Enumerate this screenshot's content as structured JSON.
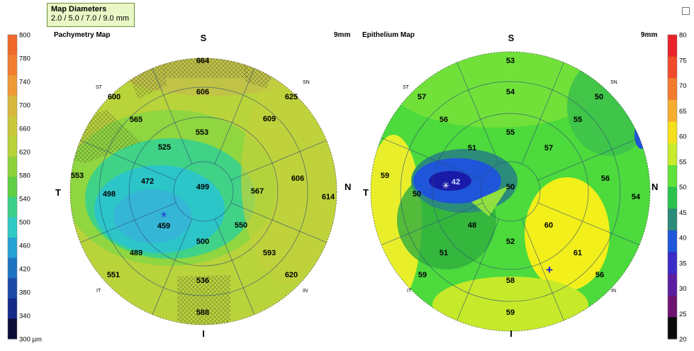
{
  "map_diameters": {
    "title": "Map Diameters",
    "values": "2.0 / 5.0 / 7.0 / 9.0 mm"
  },
  "pachymetry": {
    "title": "Pachymetry Map",
    "size_label": "9mm",
    "orientation": {
      "S": "S",
      "I": "I",
      "T": "T",
      "N": "N",
      "ST": "ST",
      "SN": "SN",
      "IT": "IT",
      "IN": "IN"
    },
    "scale_ticks": [
      "800",
      "780",
      "740",
      "700",
      "660",
      "620",
      "580",
      "540",
      "500",
      "460",
      "420",
      "380",
      "340",
      "300 µm"
    ],
    "scale_colors": [
      "#f06a2a",
      "#f27f2f",
      "#ef9a36",
      "#d9b63c",
      "#c8c83a",
      "#b8d238",
      "#8ed23a",
      "#5fd043",
      "#3cd08a",
      "#30c9c4",
      "#25a2d6",
      "#1f74c2",
      "#1b4aa7",
      "#132a88",
      "#0b0b3a"
    ],
    "zones": {
      "center": "499",
      "ring1": [
        "553",
        "567",
        "550",
        "500",
        "472",
        "525"
      ],
      "ring2": [
        "606",
        "609",
        "606",
        "593",
        "536",
        "489",
        "498",
        "565"
      ],
      "ring3": [
        "664",
        "625",
        "614",
        "620",
        "588",
        "551",
        "553",
        "600"
      ]
    },
    "thinnest_value": "459"
  },
  "epithelium": {
    "title": "Epithelium Map",
    "size_label": "9mm",
    "orientation": {
      "S": "S",
      "I": "I",
      "T": "T",
      "N": "N",
      "ST": "ST",
      "SN": "SN",
      "IT": "IT",
      "IN": "IN"
    },
    "scale_ticks": [
      "80",
      "75",
      "70",
      "65",
      "60",
      "55",
      "50",
      "45",
      "40",
      "35",
      "30",
      "25",
      "20"
    ],
    "scale_colors": [
      "#e8212a",
      "#f04a2a",
      "#f27a2d",
      "#f6ad30",
      "#f5e01b",
      "#c8ec2a",
      "#5fe33a",
      "#28c24d",
      "#2b8c7a",
      "#1f55d8",
      "#3a2bc8",
      "#5b1ea3",
      "#6d1370",
      "#0a0a0a"
    ],
    "zones": {
      "center": "50",
      "ring1": [
        "55",
        "57",
        "60",
        "52",
        "48",
        "51"
      ],
      "ring2": [
        "54",
        "55",
        "56",
        "61",
        "58",
        "51",
        "50",
        "56"
      ],
      "ring3": [
        "53",
        "50",
        "54",
        "56",
        "59",
        "59",
        "59",
        "57"
      ]
    },
    "min_value": "42"
  },
  "chart_data": [
    {
      "type": "heatmap",
      "title": "Pachymetry Map",
      "unit": "µm",
      "map_diameter_mm": 9,
      "sector_values": {
        "center": 499,
        "inner_2_5mm": {
          "S": 553,
          "N": 567,
          "IN": 550,
          "I": 500,
          "IT": 472,
          "ST": 525
        },
        "middle_5_7mm": {
          "S": 606,
          "SN": 609,
          "N": 606,
          "IN": 593,
          "I": 536,
          "IT": 489,
          "T": 498,
          "ST": 565
        },
        "outer_7_9mm": {
          "S": 664,
          "SN": 625,
          "N": 614,
          "IN": 620,
          "I": 588,
          "IT": 551,
          "T": 553,
          "ST": 600
        }
      },
      "thinnest": 459,
      "color_scale_range": [
        300,
        800
      ]
    },
    {
      "type": "heatmap",
      "title": "Epithelium Map",
      "unit": "µm",
      "map_diameter_mm": 9,
      "sector_values": {
        "center": 50,
        "inner_2_5mm": {
          "S": 55,
          "N": 57,
          "IN": 60,
          "I": 52,
          "IT": 48,
          "ST": 51
        },
        "middle_5_7mm": {
          "S": 54,
          "SN": 55,
          "N": 56,
          "IN": 61,
          "I": 58,
          "IT": 51,
          "T": 50,
          "ST": 56
        },
        "outer_7_9mm": {
          "S": 53,
          "SN": 50,
          "N": 54,
          "IN": 56,
          "I": 59,
          "IT": 59,
          "T": 59,
          "ST": 57
        }
      },
      "minimum": 42,
      "color_scale_range": [
        20,
        80
      ]
    }
  ]
}
